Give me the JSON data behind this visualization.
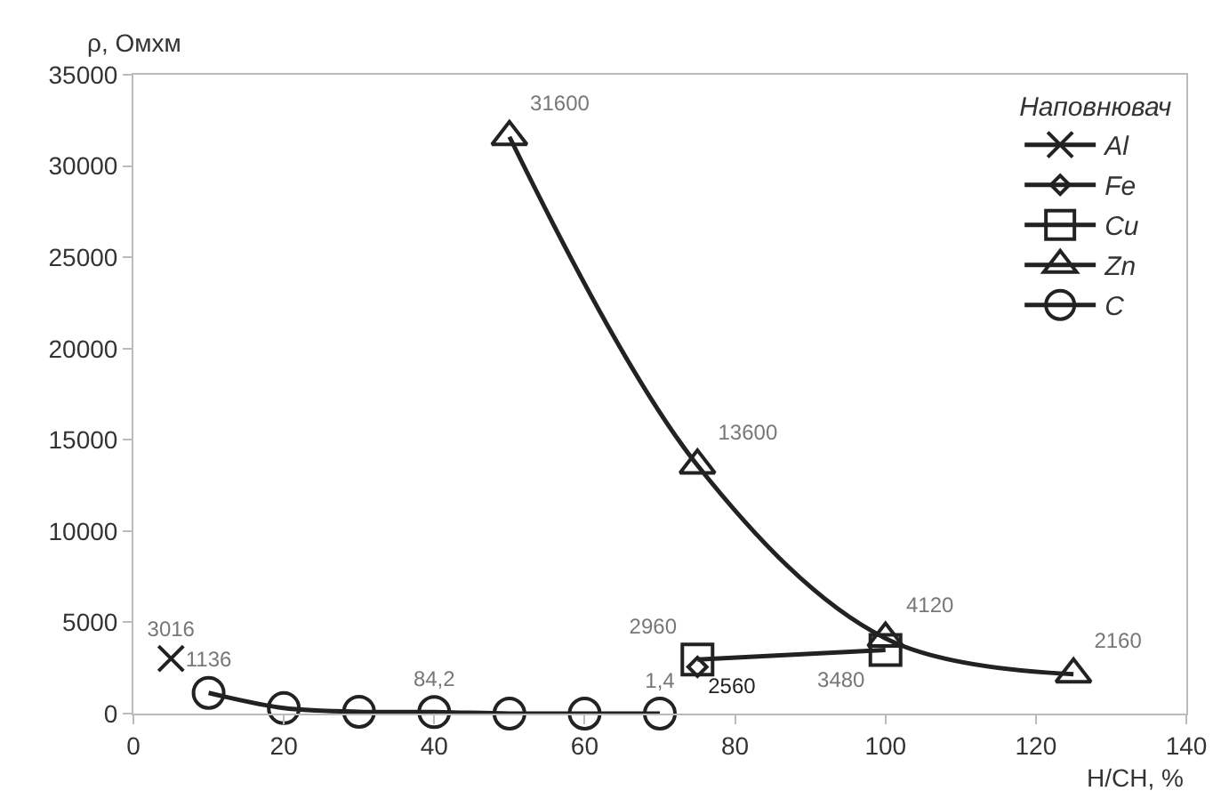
{
  "chart_data": {
    "type": "line",
    "xlabel": "Н/СН, %",
    "ylabel": "ρ, Омхм",
    "legend_title": "Наповнювач",
    "legend": "top right",
    "line_style": "solid",
    "xlim": [
      0,
      140
    ],
    "xticks": [
      0,
      20,
      40,
      60,
      80,
      100,
      120,
      140
    ],
    "ylim": [
      0,
      35000
    ],
    "yticks": [
      0,
      5000,
      10000,
      15000,
      20000,
      25000,
      30000,
      35000
    ],
    "series": [
      {
        "name": "Al",
        "color": "#222222",
        "marker": "cross",
        "x": [
          5
        ],
        "values": [
          3016
        ],
        "value_labels": [
          "3016"
        ]
      },
      {
        "name": "Fe",
        "color": "#222222",
        "marker": "diamond",
        "x": [
          75
        ],
        "values": [
          2560
        ],
        "value_labels": [
          "2560"
        ]
      },
      {
        "name": "Cu",
        "color": "#222222",
        "marker": "square",
        "x": [
          75,
          100
        ],
        "values": [
          2960,
          3480
        ],
        "value_labels": [
          "2960",
          "3480"
        ]
      },
      {
        "name": "Zn",
        "color": "#222222",
        "marker": "triangle",
        "x": [
          50,
          75,
          100,
          125
        ],
        "values": [
          31600,
          13600,
          4120,
          2160
        ],
        "value_labels": [
          "31600",
          "13600",
          "4120",
          "2160"
        ]
      },
      {
        "name": "C",
        "color": "#222222",
        "marker": "circle",
        "x": [
          10,
          20,
          30,
          40,
          50,
          60,
          70
        ],
        "values": [
          1136,
          300,
          100,
          84.2,
          0,
          0,
          1.4
        ],
        "value_labels": [
          "1136",
          null,
          null,
          "84,2",
          null,
          null,
          "1,4"
        ]
      }
    ]
  }
}
